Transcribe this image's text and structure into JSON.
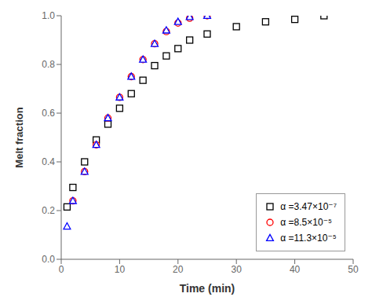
{
  "chart_data": {
    "type": "scatter",
    "x_label": "Time (min)",
    "y_label": "Melt fraction",
    "xlim": [
      0,
      50
    ],
    "ylim": [
      0,
      1
    ],
    "xticks": [
      0,
      10,
      20,
      30,
      40,
      50
    ],
    "yticks": [
      {
        "value": 0,
        "label": "0.0"
      },
      0.2,
      0.4,
      0.6,
      0.8,
      {
        "value": 1,
        "label": "1.0"
      }
    ],
    "grid": false,
    "legend": "lower right",
    "series": [
      {
        "name": "α =3.47×10⁻⁷",
        "color": "black",
        "marker": "square",
        "x": [
          1,
          2,
          4,
          6,
          8,
          10,
          12,
          14,
          16,
          18,
          20,
          22,
          25,
          30,
          35,
          40,
          45
        ],
        "values": [
          0.215,
          0.295,
          0.4,
          0.49,
          0.555,
          0.62,
          0.68,
          0.735,
          0.795,
          0.835,
          0.865,
          0.9,
          0.925,
          0.955,
          0.975,
          0.985,
          1.0
        ]
      },
      {
        "name": "α =8.5×10⁻⁵",
        "color": "red",
        "marker": "circle",
        "x": [
          2,
          4,
          6,
          8,
          10,
          12,
          14,
          16,
          18,
          20,
          22,
          25
        ],
        "values": [
          0.24,
          0.36,
          0.47,
          0.58,
          0.665,
          0.75,
          0.82,
          0.885,
          0.935,
          0.97,
          0.99,
          1.0
        ]
      },
      {
        "name": "α =11.3×10⁻⁵",
        "color": "blue",
        "marker": "triangle",
        "x": [
          1,
          2,
          4,
          6,
          8,
          10,
          12,
          14,
          16,
          18,
          20,
          22,
          25
        ],
        "values": [
          0.135,
          0.24,
          0.36,
          0.47,
          0.58,
          0.665,
          0.75,
          0.82,
          0.885,
          0.94,
          0.975,
          0.995,
          1.0
        ]
      }
    ]
  }
}
